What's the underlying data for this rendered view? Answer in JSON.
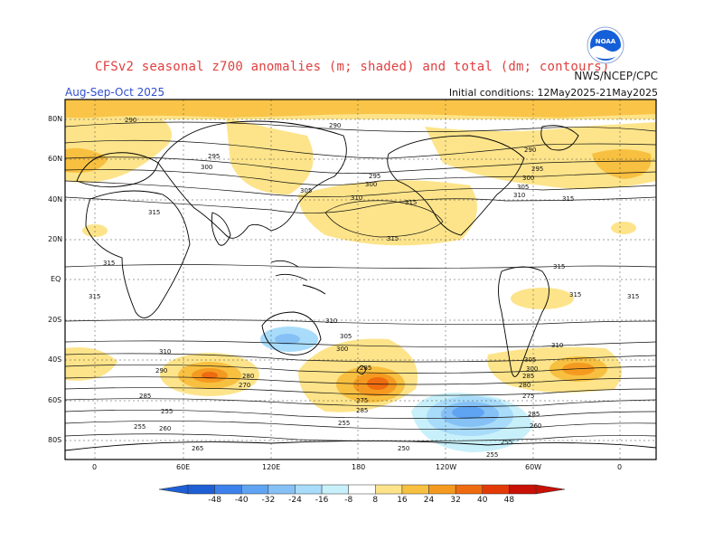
{
  "header": {
    "title": "CFSv2 seasonal z700 anomalies (m; shaded) and total (dm; contours)",
    "period": "Aug-Sep-Oct 2025",
    "agency": "NWS/NCEP/CPC",
    "initial_conditions": "Initial conditions: 12May2025-21May2025"
  },
  "logo": {
    "text": "NOAA",
    "color": "#1560d8"
  },
  "axes": {
    "lat_labels": [
      "80N",
      "60N",
      "40N",
      "20N",
      "EQ",
      "20S",
      "40S",
      "60S",
      "80S"
    ],
    "lon_labels": [
      "0",
      "60E",
      "120E",
      "180",
      "120W",
      "60W",
      "0"
    ]
  },
  "colorbar": {
    "labels": [
      "-48",
      "-40",
      "-32",
      "-24",
      "-16",
      "-8",
      "8",
      "16",
      "24",
      "32",
      "40",
      "48"
    ],
    "colors": [
      "#1e5fd6",
      "#3d82ec",
      "#5ea4f2",
      "#86c1f6",
      "#a8dcfa",
      "#c8f0fa",
      "#ffffff",
      "#fde48a",
      "#f8c040",
      "#f59a20",
      "#ef6b10",
      "#e33a08",
      "#c81005"
    ]
  },
  "contour_labels": [
    "290",
    "295",
    "300",
    "305",
    "310",
    "315",
    "280",
    "270",
    "265",
    "260",
    "255",
    "250",
    "275",
    "285"
  ]
}
